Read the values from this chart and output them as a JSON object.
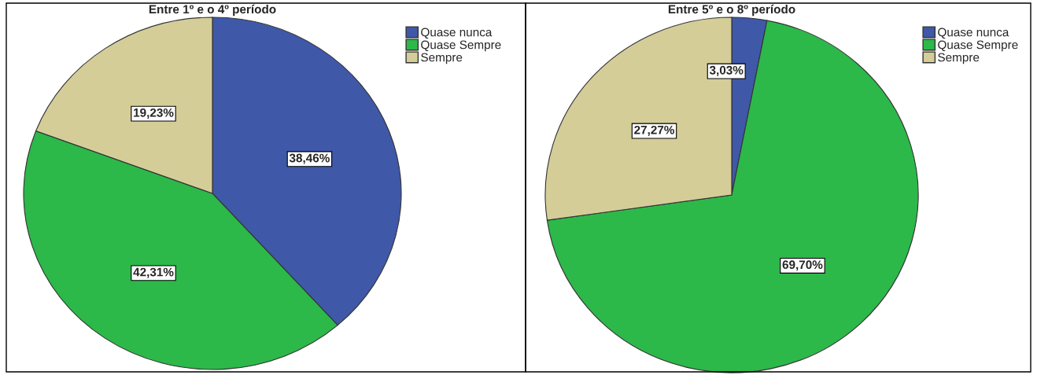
{
  "chart_data": [
    {
      "type": "pie",
      "title": "Entre 1º e o 4º período",
      "categories": [
        "Quase nunca",
        "Quase Sempre",
        "Sempre"
      ],
      "values": [
        38.46,
        42.31,
        19.23
      ],
      "value_labels": [
        "38,46%",
        "42,31%",
        "19,23%"
      ],
      "colors": [
        "#3f58a8",
        "#2db84a",
        "#d4cd98"
      ],
      "legend": "top right"
    },
    {
      "type": "pie",
      "title": "Entre 5º e o 8º período",
      "categories": [
        "Quase nunca",
        "Quase Sempre",
        "Sempre"
      ],
      "values": [
        3.03,
        69.7,
        27.27
      ],
      "value_labels": [
        "3,03%",
        "69,70%",
        "27,27%"
      ],
      "colors": [
        "#3f58a8",
        "#2db84a",
        "#d4cd98"
      ],
      "legend": "top right"
    }
  ]
}
